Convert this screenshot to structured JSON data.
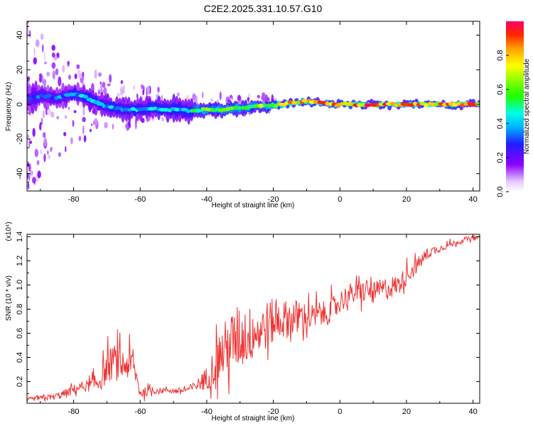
{
  "title": "C2E2.2025.331.10.57.G10",
  "chart_data": [
    {
      "type": "heatmap",
      "name": "spectrogram",
      "xlabel": "Height of straight line (km)",
      "ylabel": "Frequency (Hz)",
      "xlim": [
        -94,
        42
      ],
      "ylim": [
        -50,
        48
      ],
      "xticks": [
        -80,
        -60,
        -40,
        -20,
        0,
        20,
        40
      ],
      "xtick_labels": [
        "-80",
        "-60",
        "-40",
        "-20",
        "0",
        "20",
        "40"
      ],
      "yticks": [
        40,
        20,
        0,
        -20,
        -40
      ],
      "ytick_labels": [
        "40",
        "20",
        "0",
        "-20",
        "-40"
      ],
      "ridge": {
        "x": [
          -94,
          -90,
          -85,
          -80,
          -76,
          -72,
          -68,
          -64,
          -60,
          -56,
          -52,
          -48,
          -45,
          -42,
          -38,
          -34,
          -30,
          -26,
          -22,
          -18,
          -14,
          -10,
          -6,
          -2,
          0,
          5,
          10,
          15,
          20,
          25,
          30,
          35,
          42
        ],
        "freq": [
          3,
          5,
          4,
          6,
          4,
          0,
          -2,
          -3,
          -3,
          -2,
          -3,
          -3,
          -4,
          -3,
          -3,
          -3,
          -2,
          -1,
          -1,
          0,
          1,
          2,
          1,
          0,
          0,
          0,
          0,
          0,
          0,
          0,
          0,
          0,
          0
        ],
        "spread": [
          7,
          7,
          6,
          6,
          6,
          6,
          6,
          6,
          6,
          6,
          6,
          7,
          6,
          4,
          4,
          4,
          4,
          3,
          3,
          3,
          2,
          2,
          2,
          2,
          2,
          2,
          2,
          2,
          2,
          2,
          2,
          2,
          2
        ],
        "amplitude": [
          0.35,
          0.4,
          0.4,
          0.45,
          0.45,
          0.45,
          0.45,
          0.45,
          0.5,
          0.5,
          0.5,
          0.45,
          0.5,
          0.7,
          0.7,
          0.75,
          0.7,
          0.75,
          0.8,
          0.9,
          0.9,
          0.9,
          0.95,
          0.95,
          1.0,
          1.0,
          1.0,
          1.0,
          1.0,
          0.95,
          0.95,
          0.95,
          0.95
        ]
      },
      "colorbar": {
        "label": "Normalized spectral amplitude",
        "ticks": [
          "0.0",
          "0.2",
          "0.4",
          "0.6",
          "0.8"
        ],
        "tick_values": [
          0.0,
          0.2,
          0.4,
          0.6,
          0.8
        ],
        "range": [
          0,
          1
        ]
      }
    },
    {
      "type": "line",
      "name": "snr",
      "xlabel": "Height of straight line (km)",
      "ylabel": "SNR (10 * v/v)",
      "multiplier_label": "(x10⁴)",
      "xlim": [
        -94,
        42
      ],
      "ylim": [
        0.02,
        1.42
      ],
      "xticks": [
        -80,
        -60,
        -40,
        -20,
        0,
        20,
        40
      ],
      "xtick_labels": [
        "-80",
        "-60",
        "-40",
        "-20",
        "0",
        "20",
        "40"
      ],
      "yticks": [
        0.2,
        0.4,
        0.6,
        0.8,
        1.0,
        1.2,
        1.4
      ],
      "ytick_labels": [
        "0.2",
        "0.4",
        "0.6",
        "0.8",
        "1.0",
        "1.2",
        "1.4"
      ],
      "series": [
        {
          "name": "SNR",
          "color": "#ee3333",
          "x": [
            -94,
            -90,
            -86,
            -82,
            -80,
            -78,
            -75,
            -72,
            -70,
            -68,
            -66,
            -64,
            -62,
            -60,
            -57,
            -54,
            -52,
            -50,
            -48,
            -46,
            -44,
            -42,
            -40,
            -38,
            -36,
            -34,
            -32,
            -30,
            -28,
            -26,
            -24,
            -22,
            -20,
            -18,
            -16,
            -14,
            -12,
            -10,
            -8,
            -6,
            -4,
            -2,
            0,
            2,
            4,
            6,
            8,
            10,
            12,
            14,
            16,
            18,
            20,
            22,
            24,
            26,
            28,
            30,
            32,
            34,
            36,
            38,
            40,
            42
          ],
          "base": [
            0.05,
            0.06,
            0.07,
            0.1,
            0.13,
            0.15,
            0.16,
            0.2,
            0.3,
            0.35,
            0.32,
            0.33,
            0.32,
            0.1,
            0.12,
            0.12,
            0.13,
            0.12,
            0.12,
            0.13,
            0.15,
            0.18,
            0.22,
            0.3,
            0.4,
            0.45,
            0.5,
            0.55,
            0.55,
            0.58,
            0.6,
            0.65,
            0.68,
            0.7,
            0.7,
            0.72,
            0.72,
            0.72,
            0.72,
            0.75,
            0.75,
            0.8,
            0.85,
            0.9,
            0.92,
            0.92,
            0.95,
            0.92,
            0.95,
            0.96,
            0.98,
            1.0,
            1.08,
            1.12,
            1.18,
            1.25,
            1.28,
            1.3,
            1.32,
            1.34,
            1.36,
            1.38,
            1.38,
            1.39
          ],
          "noise": [
            0.03,
            0.04,
            0.05,
            0.08,
            0.08,
            0.08,
            0.1,
            0.18,
            0.25,
            0.3,
            0.28,
            0.26,
            0.22,
            0.1,
            0.06,
            0.05,
            0.05,
            0.05,
            0.05,
            0.05,
            0.08,
            0.12,
            0.2,
            0.3,
            0.45,
            0.5,
            0.55,
            0.55,
            0.5,
            0.45,
            0.42,
            0.4,
            0.38,
            0.35,
            0.32,
            0.3,
            0.28,
            0.25,
            0.22,
            0.22,
            0.2,
            0.2,
            0.2,
            0.18,
            0.18,
            0.18,
            0.2,
            0.18,
            0.18,
            0.2,
            0.18,
            0.16,
            0.15,
            0.14,
            0.12,
            0.1,
            0.08,
            0.06,
            0.05,
            0.05,
            0.04,
            0.04,
            0.03,
            0.03
          ]
        }
      ]
    }
  ]
}
